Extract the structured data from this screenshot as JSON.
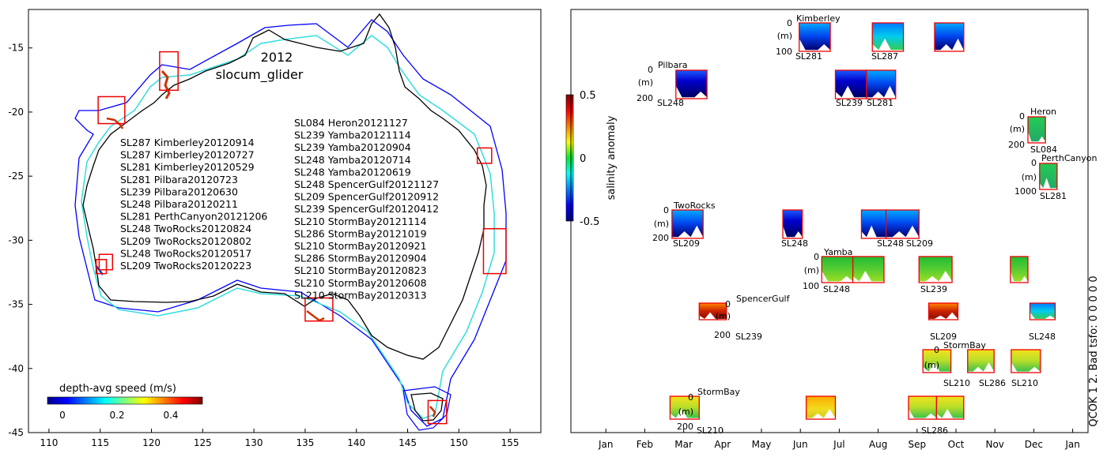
{
  "chart_data": [
    {
      "type": "map",
      "title": "2012",
      "subtitle": "slocum_glider",
      "xlim": [
        108,
        158
      ],
      "ylim": [
        -45,
        -12
      ],
      "xticks": [
        110,
        115,
        120,
        125,
        130,
        135,
        140,
        145,
        150,
        155
      ],
      "yticks": [
        -15,
        -20,
        -25,
        -30,
        -35,
        -40,
        -45
      ],
      "colorbar": {
        "label": "depth-avg speed (m/s)",
        "range": [
          0,
          0.5
        ],
        "ticks": [
          "0",
          "0.2",
          "0.4"
        ]
      },
      "legend_col1": [
        "SL287 Kimberley20120914",
        "SL287 Kimberley20120727",
        "SL281 Kimberley20120529",
        "SL281 Pilbara20120723",
        "SL239 Pilbara20120630",
        "SL248 Pilbara20120211",
        "SL281 PerthCanyon20121206",
        "SL248 TwoRocks20120824",
        "SL209 TwoRocks20120802",
        "SL248 TwoRocks20120517",
        "SL209 TwoRocks20120223"
      ],
      "legend_col2": [
        "SL084 Heron20121127",
        "SL239 Yamba20121114",
        "SL239 Yamba20120904",
        "SL248 Yamba20120714",
        "SL248 Yamba20120619",
        "SL248 SpencerGulf20121127",
        "SL209 SpencerGulf20120912",
        "SL239 SpencerGulf20120412",
        "SL210 StormBay20121114",
        "SL286 StormBay20121019",
        "SL210 StormBay20120921",
        "SL286 StormBay20120904",
        "SL210 StormBay20120823",
        "SL210 StormBay20120608",
        "SL210 StormBay20120313"
      ],
      "regions": [
        {
          "name": "Kimberley",
          "lon": [
            120.8,
            122.6
          ],
          "lat": [
            -18.3,
            -15.3
          ]
        },
        {
          "name": "Pilbara",
          "lon": [
            114.8,
            117.4
          ],
          "lat": [
            -20.9,
            -18.8
          ]
        },
        {
          "name": "PerthCanyon",
          "lon": [
            114.6,
            115.6
          ],
          "lat": [
            -32.6,
            -31.5
          ]
        },
        {
          "name": "TwoRocks",
          "lon": [
            114.9,
            116.2
          ],
          "lat": [
            -32.3,
            -31.1
          ]
        },
        {
          "name": "SpencerGulf",
          "lon": [
            135.0,
            137.7
          ],
          "lat": [
            -36.3,
            -34.5
          ]
        },
        {
          "name": "Yamba",
          "lon": [
            152.4,
            154.6
          ],
          "lat": [
            -32.6,
            -29.1
          ]
        },
        {
          "name": "Heron",
          "lon": [
            151.8,
            153.2
          ],
          "lat": [
            -24.0,
            -22.8
          ]
        },
        {
          "name": "StormBay",
          "lon": [
            147.0,
            148.8
          ],
          "lat": [
            -44.3,
            -42.5
          ]
        }
      ]
    },
    {
      "type": "heatmap",
      "xlabel": "",
      "months": [
        "Jan",
        "Feb",
        "Mar",
        "Apr",
        "May",
        "Jun",
        "Jul",
        "Aug",
        "Sep",
        "Oct",
        "Nov",
        "Dec",
        "Jan"
      ],
      "colorbar": {
        "label": "salinity anomaly",
        "range": [
          -0.5,
          0.5
        ],
        "ticks": [
          "0.5",
          "0",
          "-0.5"
        ]
      },
      "side_label": "QCOK 1  2. Bad tsfo: 0  0  0  0  0",
      "groups": [
        {
          "site": "Kimberley",
          "depth_ticks": [
            "0",
            "(m)",
            "100"
          ],
          "labels": [
            "SL281",
            "SL287"
          ]
        },
        {
          "site": "Pilbara",
          "depth_ticks": [
            "0",
            "(m)",
            "200"
          ],
          "labels": [
            "SL248",
            "SL239",
            "SL281"
          ]
        },
        {
          "site": "Heron",
          "depth_ticks": [
            "0",
            "(m)",
            "200"
          ],
          "labels": [
            "SL084"
          ]
        },
        {
          "site": "PerthCanyon",
          "depth_ticks": [
            "0",
            "(m)",
            "1000"
          ],
          "labels": [
            "SL281"
          ]
        },
        {
          "site": "TwoRocks",
          "depth_ticks": [
            "0",
            "(m)",
            "200"
          ],
          "labels": [
            "SL209",
            "SL248",
            "SL209",
            "SL248"
          ]
        },
        {
          "site": "Yamba",
          "depth_ticks": [
            "0",
            "(m)",
            "100"
          ],
          "labels": [
            "SL248",
            "SL239"
          ]
        },
        {
          "site": "SpencerGulf",
          "depth_ticks": [
            "0",
            "(m)",
            "200"
          ],
          "labels": [
            "SL239",
            "SL209",
            "SL248"
          ]
        },
        {
          "site": "StormBay",
          "depth_ticks": [
            "0",
            "(m)"
          ],
          "labels": [
            "SL210",
            "SL286",
            "SL210"
          ]
        },
        {
          "site": "StormBay",
          "depth_ticks": [
            "0",
            "(m)",
            "200"
          ],
          "labels": [
            "SL210",
            "SL286"
          ]
        }
      ],
      "panels": [
        {
          "site": "Kimberley",
          "month": 5.97,
          "dur": 0.8,
          "style": "fresh"
        },
        {
          "site": "Kimberley",
          "month": 7.85,
          "dur": 0.8,
          "style": "mixed"
        },
        {
          "site": "Kimberley",
          "month": 9.45,
          "dur": 0.75,
          "style": "fresh"
        },
        {
          "site": "Pilbara",
          "month": 2.8,
          "dur": 0.8,
          "style": "veryfresh"
        },
        {
          "site": "Pilbara",
          "month": 6.9,
          "dur": 0.8,
          "style": "veryfresh"
        },
        {
          "site": "Pilbara",
          "month": 7.7,
          "dur": 0.75,
          "style": "fresh"
        },
        {
          "site": "Heron",
          "month": 11.85,
          "dur": 0.45,
          "style": "dots"
        },
        {
          "site": "PerthCanyon",
          "month": 12.15,
          "dur": 0.45,
          "style": "dots"
        },
        {
          "site": "TwoRocks",
          "month": 2.7,
          "dur": 0.8,
          "style": "fresh"
        },
        {
          "site": "TwoRocks",
          "month": 5.55,
          "dur": 0.5,
          "style": "veryfresh"
        },
        {
          "site": "TwoRocks",
          "month": 7.57,
          "dur": 0.65,
          "style": "fresh"
        },
        {
          "site": "TwoRocks",
          "month": 8.2,
          "dur": 0.85,
          "style": "fresh"
        },
        {
          "site": "Yamba",
          "month": 6.55,
          "dur": 0.8,
          "style": "green"
        },
        {
          "site": "Yamba",
          "month": 7.35,
          "dur": 0.8,
          "style": "green"
        },
        {
          "site": "Yamba",
          "month": 9.05,
          "dur": 0.85,
          "style": "green"
        },
        {
          "site": "Yamba",
          "month": 11.4,
          "dur": 0.45,
          "style": "green"
        },
        {
          "site": "SpencerGulf",
          "month": 3.4,
          "dur": 0.7,
          "style": "salty"
        },
        {
          "site": "SpencerGulf",
          "month": 9.3,
          "dur": 0.75,
          "style": "salty"
        },
        {
          "site": "SpencerGulf",
          "month": 11.9,
          "dur": 0.65,
          "style": "mixed"
        },
        {
          "site": "StormBay",
          "month": 9.15,
          "dur": 0.72,
          "style": "yellow"
        },
        {
          "site": "StormBay",
          "month": 10.3,
          "dur": 0.68,
          "style": "yellow"
        },
        {
          "site": "StormBay",
          "month": 11.42,
          "dur": 0.75,
          "style": "yellow"
        },
        {
          "site": "StormBay2",
          "month": 2.65,
          "dur": 0.75,
          "style": "yellow"
        },
        {
          "site": "StormBay2",
          "month": 6.15,
          "dur": 0.75,
          "style": "orange"
        },
        {
          "site": "StormBay2",
          "month": 8.78,
          "dur": 0.72,
          "style": "yellow"
        },
        {
          "site": "StormBay2",
          "month": 9.5,
          "dur": 0.7,
          "style": "yellow"
        }
      ]
    }
  ]
}
